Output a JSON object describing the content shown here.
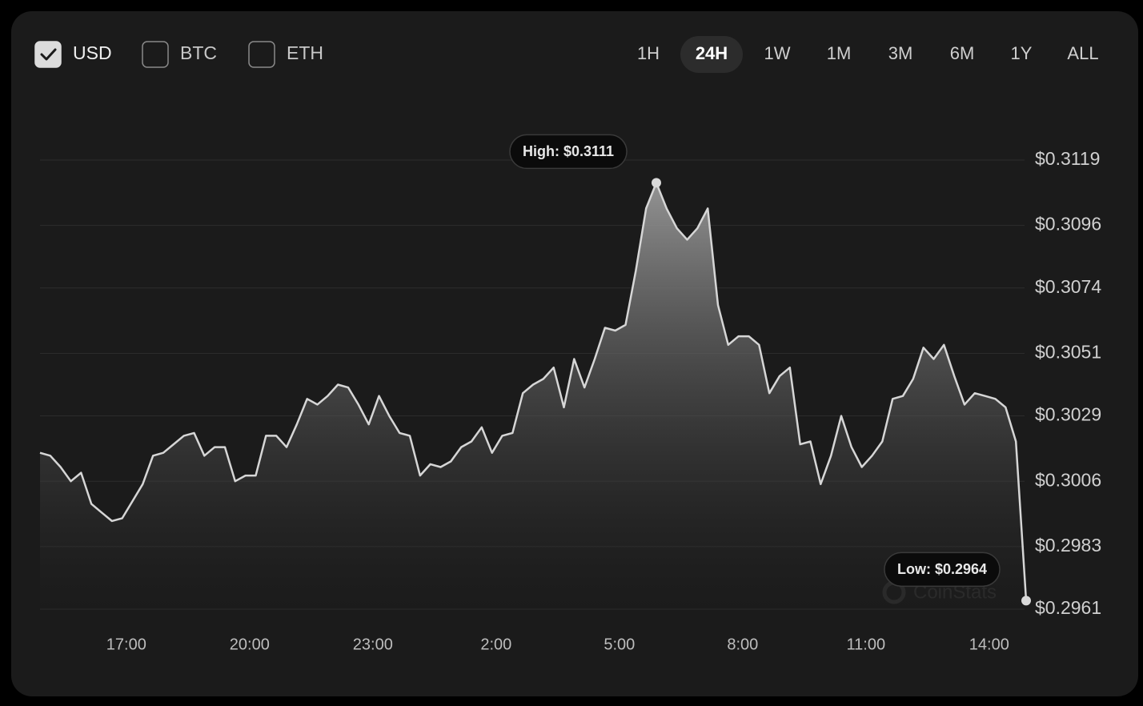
{
  "currencies": [
    {
      "label": "USD",
      "checked": true
    },
    {
      "label": "BTC",
      "checked": false
    },
    {
      "label": "ETH",
      "checked": false
    }
  ],
  "ranges": {
    "options": [
      "1H",
      "24H",
      "1W",
      "1M",
      "3M",
      "6M",
      "1Y",
      "ALL"
    ],
    "active": 1
  },
  "watermark": "CoinStats",
  "chart_data": {
    "type": "area",
    "color": "#d6d6d6",
    "grid": true,
    "x": [
      14.9,
      15.15,
      15.4,
      15.65,
      15.9,
      16.15,
      16.4,
      16.65,
      16.9,
      17.15,
      17.4,
      17.65,
      17.9,
      18.15,
      18.4,
      18.65,
      18.9,
      19.15,
      19.4,
      19.65,
      19.9,
      20.15,
      20.4,
      20.65,
      20.9,
      21.15,
      21.4,
      21.65,
      21.9,
      22.15,
      22.4,
      22.65,
      22.9,
      23.15,
      23.4,
      23.65,
      23.9,
      24.15,
      24.4,
      24.65,
      24.9,
      25.15,
      25.4,
      25.65,
      25.9,
      26.15,
      26.4,
      26.65,
      26.9,
      27.15,
      27.4,
      27.65,
      27.9,
      28.15,
      28.4,
      28.65,
      28.9,
      29.15,
      29.4,
      29.65,
      29.9,
      30.15,
      30.4,
      30.65,
      30.9,
      31.15,
      31.4,
      31.65,
      31.9,
      32.15,
      32.4,
      32.65,
      32.9,
      33.15,
      33.4,
      33.65,
      33.9,
      34.15,
      34.4,
      34.65,
      34.9,
      35.15,
      35.4,
      35.65,
      35.9,
      36.15,
      36.4,
      36.65,
      36.9,
      37.15,
      37.4,
      37.65,
      37.9,
      38.15,
      38.4,
      38.65,
      38.9
    ],
    "values": [
      0.3016,
      0.3015,
      0.3011,
      0.3006,
      0.3009,
      0.2998,
      0.2995,
      0.2992,
      0.2993,
      0.2999,
      0.3005,
      0.3015,
      0.3016,
      0.3019,
      0.3022,
      0.3023,
      0.3015,
      0.3018,
      0.3018,
      0.3006,
      0.3008,
      0.3008,
      0.3022,
      0.3022,
      0.3018,
      0.3026,
      0.3035,
      0.3033,
      0.3036,
      0.304,
      0.3039,
      0.3033,
      0.3026,
      0.3036,
      0.3029,
      0.3023,
      0.3022,
      0.3008,
      0.3012,
      0.3011,
      0.3013,
      0.3018,
      0.302,
      0.3025,
      0.3016,
      0.3022,
      0.3023,
      0.3037,
      0.304,
      0.3042,
      0.3046,
      0.3032,
      0.3049,
      0.3039,
      0.3049,
      0.306,
      0.3059,
      0.3061,
      0.308,
      0.3102,
      0.3111,
      0.3102,
      0.3095,
      0.3091,
      0.3095,
      0.3102,
      0.3068,
      0.3054,
      0.3057,
      0.3057,
      0.3054,
      0.3037,
      0.3043,
      0.3046,
      0.3019,
      0.302,
      0.3005,
      0.3015,
      0.3029,
      0.3018,
      0.3011,
      0.3015,
      0.302,
      0.3035,
      0.3036,
      0.3042,
      0.3053,
      0.3049,
      0.3054,
      0.3043,
      0.3033,
      0.3037,
      0.3036,
      0.3035,
      0.3032,
      0.302,
      0.2964
    ],
    "xlim": [
      14.9,
      38.9
    ],
    "xticks": [
      {
        "value": 17,
        "label": "17:00"
      },
      {
        "value": 20,
        "label": "20:00"
      },
      {
        "value": 23,
        "label": "23:00"
      },
      {
        "value": 26,
        "label": "2:00"
      },
      {
        "value": 29,
        "label": "5:00"
      },
      {
        "value": 32,
        "label": "8:00"
      },
      {
        "value": 35,
        "label": "11:00"
      },
      {
        "value": 38,
        "label": "14:00"
      }
    ],
    "ylim": [
      0.2961,
      0.3119
    ],
    "yticks": [
      {
        "value": 0.3119,
        "label": "$0.3119"
      },
      {
        "value": 0.3096,
        "label": "$0.3096"
      },
      {
        "value": 0.3074,
        "label": "$0.3074"
      },
      {
        "value": 0.3051,
        "label": "$0.3051"
      },
      {
        "value": 0.3029,
        "label": "$0.3029"
      },
      {
        "value": 0.3006,
        "label": "$0.3006"
      },
      {
        "value": 0.2983,
        "label": "$0.2983"
      },
      {
        "value": 0.2961,
        "label": "$0.2961"
      }
    ],
    "annotations": [
      {
        "label": "High: $0.3111",
        "x": 29.9,
        "y": 0.3111
      },
      {
        "label": "Low: $0.2964",
        "x": 38.9,
        "y": 0.2964
      }
    ]
  }
}
